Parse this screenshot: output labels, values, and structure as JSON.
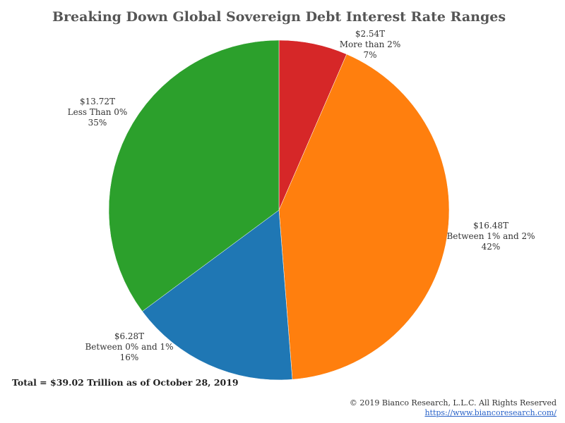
{
  "chart_data": {
    "type": "pie",
    "title": "Breaking Down Global Sovereign Debt Interest Rate Ranges",
    "slices": [
      {
        "label": "More than 2%",
        "value": 2.54,
        "value_label": "$2.54T",
        "percent_label": "7%",
        "color": "#d62728"
      },
      {
        "label": "Between 1% and 2%",
        "value": 16.48,
        "value_label": "$16.48T",
        "percent_label": "42%",
        "color": "#ff7f0e"
      },
      {
        "label": "Between 0% and 1%",
        "value": 6.28,
        "value_label": "$6.28T",
        "percent_label": "16%",
        "color": "#1f77b4"
      },
      {
        "label": "Less Than 0%",
        "value": 13.72,
        "value_label": "$13.72T",
        "percent_label": "35%",
        "color": "#2ca02c"
      }
    ],
    "start_angle": "top",
    "direction": "clockwise"
  },
  "footer": {
    "total": "Total = $39.02 Trillion as of October 28, 2019",
    "copyright": "© 2019 Bianco Research, L.L.C. All Rights Reserved",
    "url": "https://www.biancoresearch.com/"
  }
}
